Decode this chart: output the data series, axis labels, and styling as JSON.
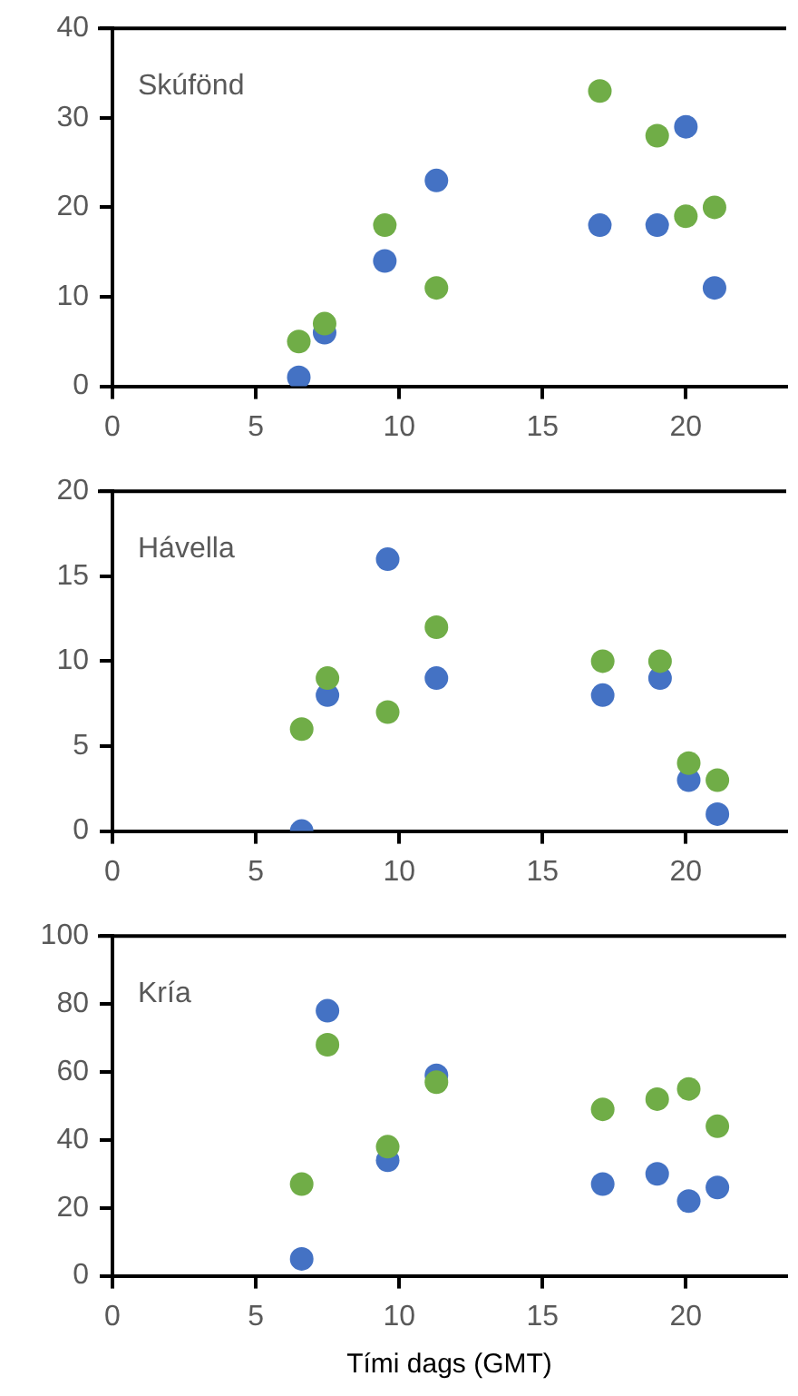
{
  "chart_data": [
    {
      "type": "scatter",
      "annotations": [
        "Skúfönd"
      ],
      "x": [
        6.5,
        7.4,
        9.5,
        11.3,
        17,
        19,
        20,
        21
      ],
      "xlim": [
        0,
        23.5
      ],
      "xticks": [
        0,
        5,
        10,
        15,
        20
      ],
      "ylim": [
        0,
        40
      ],
      "yticks": [
        0,
        10,
        20,
        30,
        40
      ],
      "grid": false,
      "marker": "circle",
      "series": [
        {
          "color": "#4472c4",
          "values": [
            1,
            6,
            14,
            23,
            18,
            18,
            29,
            11
          ]
        },
        {
          "color": "#70ad47",
          "values": [
            5,
            7,
            18,
            11,
            33,
            28,
            19,
            20
          ]
        }
      ]
    },
    {
      "type": "scatter",
      "annotations": [
        "Hávella"
      ],
      "x": [
        6.6,
        7.5,
        9.6,
        11.3,
        17.1,
        19.1,
        20.1,
        21.1
      ],
      "xlim": [
        0,
        23.5
      ],
      "xticks": [
        0,
        5,
        10,
        15,
        20
      ],
      "ylim": [
        0,
        20
      ],
      "yticks": [
        0,
        5,
        10,
        15,
        20
      ],
      "grid": false,
      "marker": "circle",
      "series": [
        {
          "color": "#4472c4",
          "values": [
            0,
            8,
            16,
            9,
            8,
            9,
            3,
            1
          ]
        },
        {
          "color": "#70ad47",
          "values": [
            6,
            9,
            7,
            12,
            10,
            10,
            4,
            3
          ]
        }
      ]
    },
    {
      "type": "scatter",
      "annotations": [
        "Kría"
      ],
      "xlabel": "Tími dags (GMT)",
      "x": [
        6.6,
        7.5,
        9.6,
        11.3,
        17.1,
        19,
        20.1,
        21.1
      ],
      "xlim": [
        0,
        23.5
      ],
      "xticks": [
        0,
        5,
        10,
        15,
        20
      ],
      "ylim": [
        0,
        100
      ],
      "yticks": [
        0,
        20,
        40,
        60,
        80,
        100
      ],
      "grid": false,
      "marker": "circle",
      "series": [
        {
          "color": "#4472c4",
          "values": [
            5,
            78,
            34,
            59,
            27,
            30,
            22,
            26
          ]
        },
        {
          "color": "#70ad47",
          "values": [
            27,
            68,
            38,
            57,
            49,
            52,
            55,
            44
          ]
        }
      ]
    }
  ]
}
